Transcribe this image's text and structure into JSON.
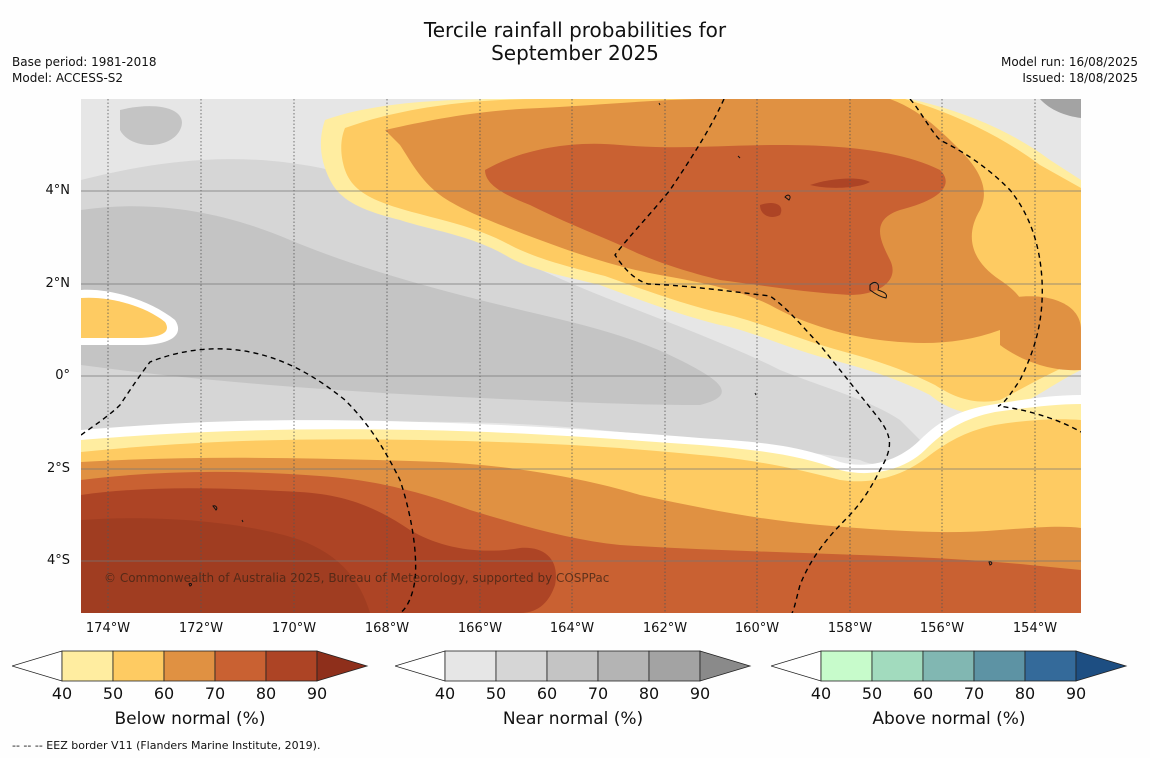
{
  "header": {
    "title_line1": "Tercile rainfall probabilities for",
    "title_line2": "September 2025",
    "base_period": "Base period: 1981-2018",
    "model": "Model: ACCESS-S2",
    "model_run": "Model run: 16/08/2025",
    "issued": "Issued: 18/08/2025"
  },
  "map": {
    "lat_labels": [
      "4°N",
      "2°N",
      "0°",
      "2°S",
      "4°S"
    ],
    "lon_labels": [
      "174°W",
      "172°W",
      "170°W",
      "168°W",
      "166°W",
      "164°W",
      "162°W",
      "160°W",
      "158°W",
      "156°W",
      "154°W"
    ],
    "copyright": "© Commonwealth of Australia 2025, Bureau of Meteorology, supported by COSPPac",
    "colors": {
      "below": [
        "#ffeda0",
        "#fecb62",
        "#e09142",
        "#c96132",
        "#ad4425",
        "#8e2f1b"
      ],
      "near": [
        "#e6e6e6",
        "#d6d6d6",
        "#c4c4c4",
        "#b4b4b4",
        "#a3a3a3",
        "#8a8a8a"
      ],
      "above": [
        "#c7fbcb",
        "#a2dbbe",
        "#81b7b2",
        "#5d93a4",
        "#346a9a",
        "#1d4e82"
      ]
    }
  },
  "legends": [
    {
      "title": "Below normal (%)",
      "ticks": [
        "40",
        "50",
        "60",
        "70",
        "80",
        "90"
      ],
      "palette": "below"
    },
    {
      "title": "Near normal (%)",
      "ticks": [
        "40",
        "50",
        "60",
        "70",
        "80",
        "90"
      ],
      "palette": "near"
    },
    {
      "title": "Above normal (%)",
      "ticks": [
        "40",
        "50",
        "60",
        "70",
        "80",
        "90"
      ],
      "palette": "above"
    }
  ],
  "footnote": "--  --  -- EEZ border V11 (Flanders Marine Institute, 2019)."
}
